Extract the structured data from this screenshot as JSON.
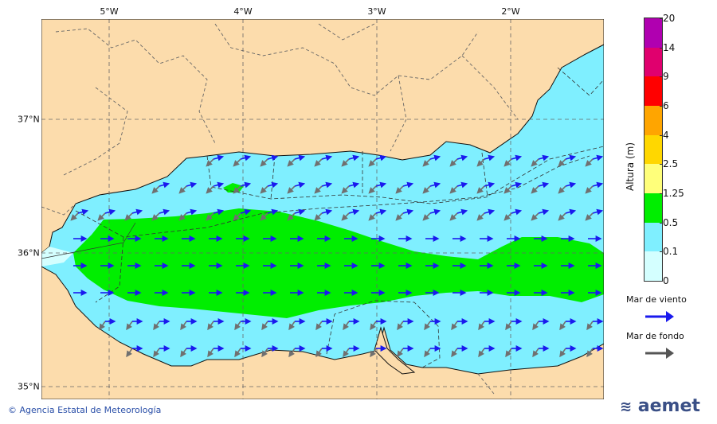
{
  "map": {
    "lon_labels": [
      "5°W",
      "4°W",
      "3°W",
      "2°W"
    ],
    "lat_labels": [
      "37°N",
      "36°N",
      "35°N"
    ],
    "colors": {
      "land": "#fcdcac",
      "sea_low": "#7fefff",
      "sea_lowest": "#d4ffff",
      "green": "#00ee00",
      "wind_arrow": "#1a1aee",
      "swell_arrow": "#707070",
      "border": "#555555",
      "gridline": "#666666"
    }
  },
  "legend": {
    "title": "Altura (m)",
    "ticks": [
      "20",
      "14",
      "9",
      "6",
      "4",
      "2.5",
      "1.25",
      "0.5",
      "0.1",
      "0"
    ],
    "band_colors": [
      "#b000b0",
      "#e0006e",
      "#ff0000",
      "#ffa500",
      "#ffd700",
      "#ffff7a",
      "#00ee00",
      "#7fefff",
      "#d4ffff"
    ],
    "wind_label": "Mar de viento",
    "swell_label": "Mar de fondo"
  },
  "footer": {
    "credit": "© Agencia Estatal de Meteorología",
    "brand": "aemet"
  }
}
